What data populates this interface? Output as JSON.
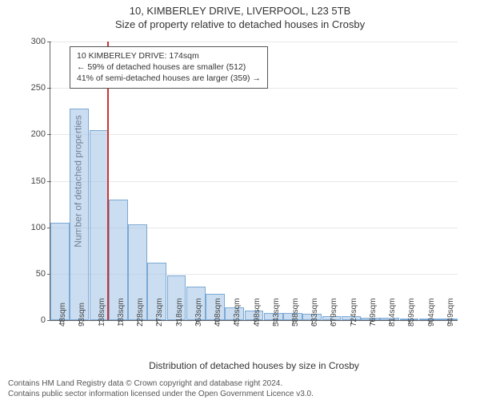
{
  "title": "10, KIMBERLEY DRIVE, LIVERPOOL, L23 5TB",
  "subtitle": "Size of property relative to detached houses in Crosby",
  "chart": {
    "type": "histogram",
    "ylabel": "Number of detached properties",
    "xlabel": "Distribution of detached houses by size in Crosby",
    "ylim": [
      0,
      300
    ],
    "ytick_step": 50,
    "yticks": [
      0,
      50,
      100,
      150,
      200,
      250,
      300
    ],
    "x_labels": [
      "48sqm",
      "93sqm",
      "138sqm",
      "183sqm",
      "228sqm",
      "273sqm",
      "318sqm",
      "363sqm",
      "408sqm",
      "453sqm",
      "498sqm",
      "543sqm",
      "588sqm",
      "633sqm",
      "679sqm",
      "724sqm",
      "769sqm",
      "814sqm",
      "859sqm",
      "904sqm",
      "949sqm"
    ],
    "bar_values": [
      105,
      228,
      205,
      130,
      103,
      62,
      48,
      36,
      28,
      14,
      10,
      8,
      8,
      7,
      4,
      4,
      3,
      3,
      0,
      0,
      1
    ],
    "bar_fill": "rgba(160,195,230,0.55)",
    "bar_stroke": "#7aa8d4",
    "grid_color": "#e8e8e8",
    "axis_color": "#666666",
    "background_color": "#ffffff",
    "marker": {
      "value_sqm": 174,
      "x_range_sqm": [
        48,
        949
      ],
      "color": "#cc3333"
    },
    "annotation": {
      "lines": [
        "10 KIMBERLEY DRIVE: 174sqm",
        "← 59% of detached houses are smaller (512)",
        "41% of semi-detached houses are larger (359) →"
      ],
      "border_color": "#555555",
      "bg_color": "#ffffff",
      "fontsize": 10.5
    }
  },
  "footer": {
    "line1": "Contains HM Land Registry data © Crown copyright and database right 2024.",
    "line2": "Contains public sector information licensed under the Open Government Licence v3.0."
  }
}
